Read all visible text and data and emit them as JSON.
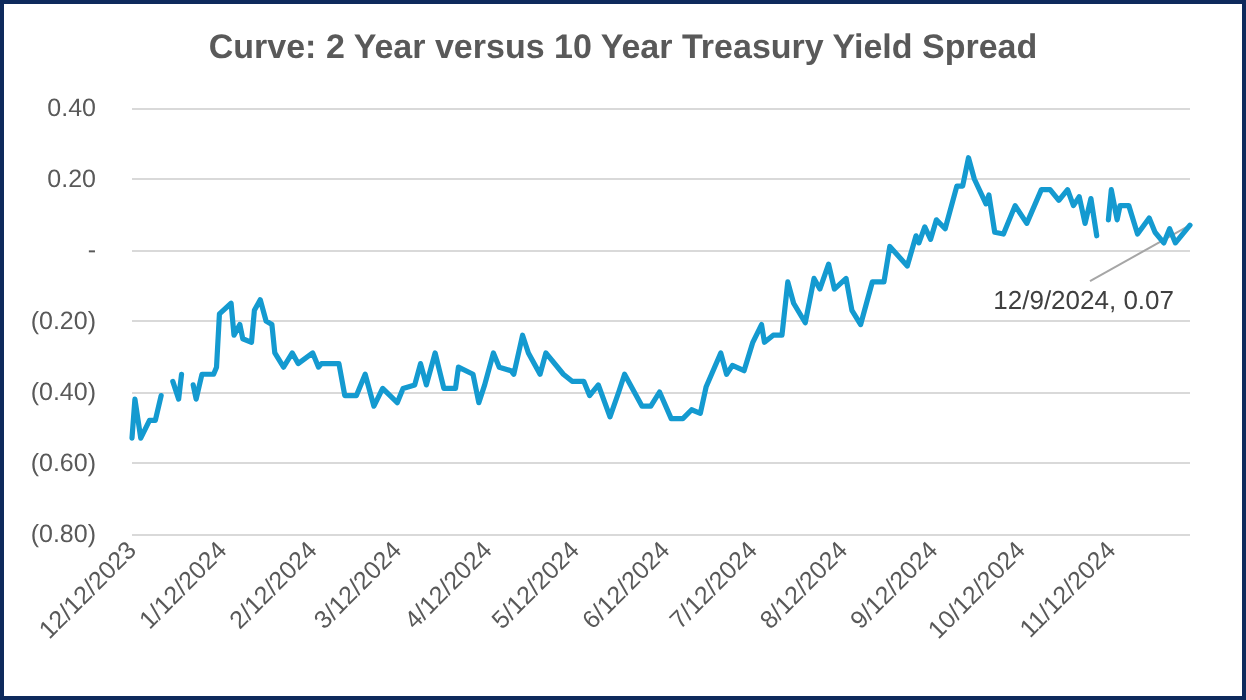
{
  "chart_data": {
    "type": "line",
    "title": "Curve: 2 Year versus 10 Year Treasury Yield Spread",
    "x": [
      "2023-12-12",
      "2023-12-13",
      "2023-12-15",
      "2023-12-18",
      "2023-12-20",
      "2023-12-22",
      "2023-12-25",
      "2023-12-26",
      "2023-12-28",
      "2023-12-29",
      "2024-01-01",
      "2024-01-02",
      "2024-01-03",
      "2024-01-05",
      "2024-01-09",
      "2024-01-10",
      "2024-01-11",
      "2024-01-15",
      "2024-01-16",
      "2024-01-18",
      "2024-01-19",
      "2024-01-22",
      "2024-01-23",
      "2024-01-25",
      "2024-01-27",
      "2024-01-29",
      "2024-01-30",
      "2024-02-02",
      "2024-02-05",
      "2024-02-07",
      "2024-02-12",
      "2024-02-14",
      "2024-02-15",
      "2024-02-19",
      "2024-02-21",
      "2024-02-23",
      "2024-02-27",
      "2024-03-01",
      "2024-03-04",
      "2024-03-07",
      "2024-03-12",
      "2024-03-14",
      "2024-03-18",
      "2024-03-20",
      "2024-03-22",
      "2024-03-25",
      "2024-03-28",
      "2024-04-01",
      "2024-04-02",
      "2024-04-07",
      "2024-04-09",
      "2024-04-11",
      "2024-04-14",
      "2024-04-16",
      "2024-04-20",
      "2024-04-21",
      "2024-04-24",
      "2024-04-26",
      "2024-04-30",
      "2024-05-02",
      "2024-05-08",
      "2024-05-11",
      "2024-05-15",
      "2024-05-17",
      "2024-05-20",
      "2024-05-24",
      "2024-05-27",
      "2024-05-29",
      "2024-06-04",
      "2024-06-07",
      "2024-06-10",
      "2024-06-14",
      "2024-06-18",
      "2024-06-21",
      "2024-06-24",
      "2024-06-26",
      "2024-07-01",
      "2024-07-03",
      "2024-07-05",
      "2024-07-09",
      "2024-07-12",
      "2024-07-15",
      "2024-07-16",
      "2024-07-19",
      "2024-07-22",
      "2024-07-24",
      "2024-07-26",
      "2024-07-30",
      "2024-08-02",
      "2024-08-04",
      "2024-08-07",
      "2024-08-09",
      "2024-08-13",
      "2024-08-15",
      "2024-08-18",
      "2024-08-22",
      "2024-08-26",
      "2024-08-28",
      "2024-09-03",
      "2024-09-06",
      "2024-09-07",
      "2024-09-09",
      "2024-09-11",
      "2024-09-13",
      "2024-09-16",
      "2024-09-20",
      "2024-09-22",
      "2024-09-24",
      "2024-09-26",
      "2024-09-30",
      "2024-10-01",
      "2024-10-03",
      "2024-10-06",
      "2024-10-10",
      "2024-10-14",
      "2024-10-19",
      "2024-10-22",
      "2024-10-25",
      "2024-10-28",
      "2024-10-30",
      "2024-11-01",
      "2024-11-03",
      "2024-11-05",
      "2024-11-07",
      "2024-11-09",
      "2024-11-11",
      "2024-11-12",
      "2024-11-14",
      "2024-11-15",
      "2024-11-18",
      "2024-11-21",
      "2024-11-25",
      "2024-11-27",
      "2024-11-30",
      "2024-12-02",
      "2024-12-04",
      "2024-12-09"
    ],
    "series": [
      {
        "color": "#149ad0",
        "values": [
          -0.53,
          -0.42,
          -0.53,
          -0.48,
          -0.48,
          -0.41,
          null,
          -0.37,
          -0.42,
          -0.35,
          null,
          -0.38,
          -0.42,
          -0.35,
          -0.35,
          -0.33,
          -0.18,
          -0.15,
          -0.24,
          -0.21,
          -0.25,
          -0.26,
          -0.17,
          -0.14,
          -0.2,
          -0.21,
          -0.29,
          -0.33,
          -0.29,
          -0.32,
          -0.29,
          -0.33,
          -0.32,
          -0.32,
          -0.32,
          -0.41,
          -0.41,
          -0.35,
          -0.44,
          -0.39,
          -0.43,
          -0.39,
          -0.38,
          -0.32,
          -0.38,
          -0.29,
          -0.39,
          -0.39,
          -0.33,
          -0.35,
          -0.43,
          -0.38,
          -0.29,
          -0.33,
          -0.34,
          -0.35,
          -0.24,
          -0.29,
          -0.35,
          -0.29,
          -0.35,
          -0.37,
          -0.37,
          -0.41,
          -0.38,
          -0.47,
          -0.4,
          -0.35,
          -0.44,
          -0.44,
          -0.4,
          -0.475,
          -0.475,
          -0.45,
          -0.46,
          -0.385,
          -0.29,
          -0.35,
          -0.325,
          -0.34,
          -0.26,
          -0.21,
          -0.26,
          -0.24,
          -0.24,
          -0.09,
          -0.15,
          -0.205,
          -0.08,
          -0.11,
          -0.04,
          -0.11,
          -0.08,
          -0.17,
          -0.21,
          -0.09,
          -0.09,
          0.01,
          -0.045,
          0.04,
          0.02,
          0.065,
          0.03,
          0.085,
          0.06,
          0.18,
          0.18,
          0.26,
          0.2,
          0.13,
          0.155,
          0.05,
          0.045,
          0.125,
          0.075,
          0.17,
          0.17,
          0.14,
          0.17,
          0.125,
          0.15,
          0.075,
          0.145,
          0.04,
          null,
          0.085,
          0.17,
          0.085,
          0.125,
          0.125,
          0.045,
          0.09,
          0.05,
          0.02,
          0.06,
          0.02,
          0.07
        ]
      }
    ],
    "xlim": [
      "2023-12-12",
      "2024-12-09"
    ],
    "xticks": [
      {
        "value": "2023-12-12",
        "label": "12/12/2023"
      },
      {
        "value": "2024-01-12",
        "label": "1/12/2024"
      },
      {
        "value": "2024-02-12",
        "label": "2/12/2024"
      },
      {
        "value": "2024-03-12",
        "label": "3/12/2024"
      },
      {
        "value": "2024-04-12",
        "label": "4/12/2024"
      },
      {
        "value": "2024-05-12",
        "label": "5/12/2024"
      },
      {
        "value": "2024-06-12",
        "label": "6/12/2024"
      },
      {
        "value": "2024-07-12",
        "label": "7/12/2024"
      },
      {
        "value": "2024-08-12",
        "label": "8/12/2024"
      },
      {
        "value": "2024-09-12",
        "label": "9/12/2024"
      },
      {
        "value": "2024-10-12",
        "label": "10/12/2024"
      },
      {
        "value": "2024-11-12",
        "label": "11/12/2024"
      }
    ],
    "ylim": [
      -0.8,
      0.4
    ],
    "yticks": [
      {
        "value": -0.8,
        "label": "(0.80)"
      },
      {
        "value": -0.6,
        "label": "(0.60)"
      },
      {
        "value": -0.4,
        "label": "(0.40)"
      },
      {
        "value": -0.2,
        "label": "(0.20)"
      },
      {
        "value": 0,
        "label": "-"
      },
      {
        "value": 0.2,
        "label": "0.20"
      },
      {
        "value": 0.4,
        "label": "0.40"
      }
    ],
    "annotations": [
      {
        "text": "12/9/2024, 0.07",
        "x": "2024-12-09",
        "y": 0.07
      }
    ],
    "grid": "y",
    "marker": "none",
    "line_style": "solid"
  }
}
